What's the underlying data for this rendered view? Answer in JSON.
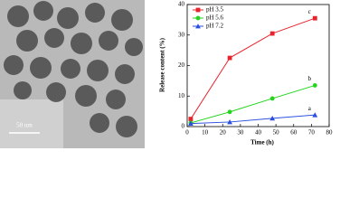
{
  "image": {
    "scale_bar_label": "50 nm"
  },
  "chart_data": {
    "type": "line",
    "x_label": "Time (h)",
    "y_label": "Release content (%)",
    "xlim": [
      0,
      80
    ],
    "xticks": [
      0,
      10,
      20,
      30,
      40,
      50,
      60,
      70,
      80
    ],
    "ylim": [
      0,
      40
    ],
    "yticks": [
      0,
      10,
      20,
      30,
      40
    ],
    "legend": "upper-left",
    "series": [
      {
        "name": "pH 3.5",
        "color": "#e8232b",
        "marker": "square",
        "annotation": "c",
        "x": [
          2,
          24,
          48,
          72
        ],
        "values": [
          2.5,
          22.5,
          30.5,
          35.5
        ]
      },
      {
        "name": "pH 5.6",
        "color": "#22d41c",
        "marker": "circle",
        "annotation": "b",
        "x": [
          2,
          24,
          48,
          72
        ],
        "values": [
          1.2,
          4.8,
          9.2,
          13.5
        ]
      },
      {
        "name": "pH 7.2",
        "color": "#2b4fe0",
        "marker": "triangle",
        "annotation": "a",
        "x": [
          2,
          24,
          48,
          72
        ],
        "values": [
          1,
          1.5,
          2.7,
          3.8
        ]
      }
    ]
  }
}
